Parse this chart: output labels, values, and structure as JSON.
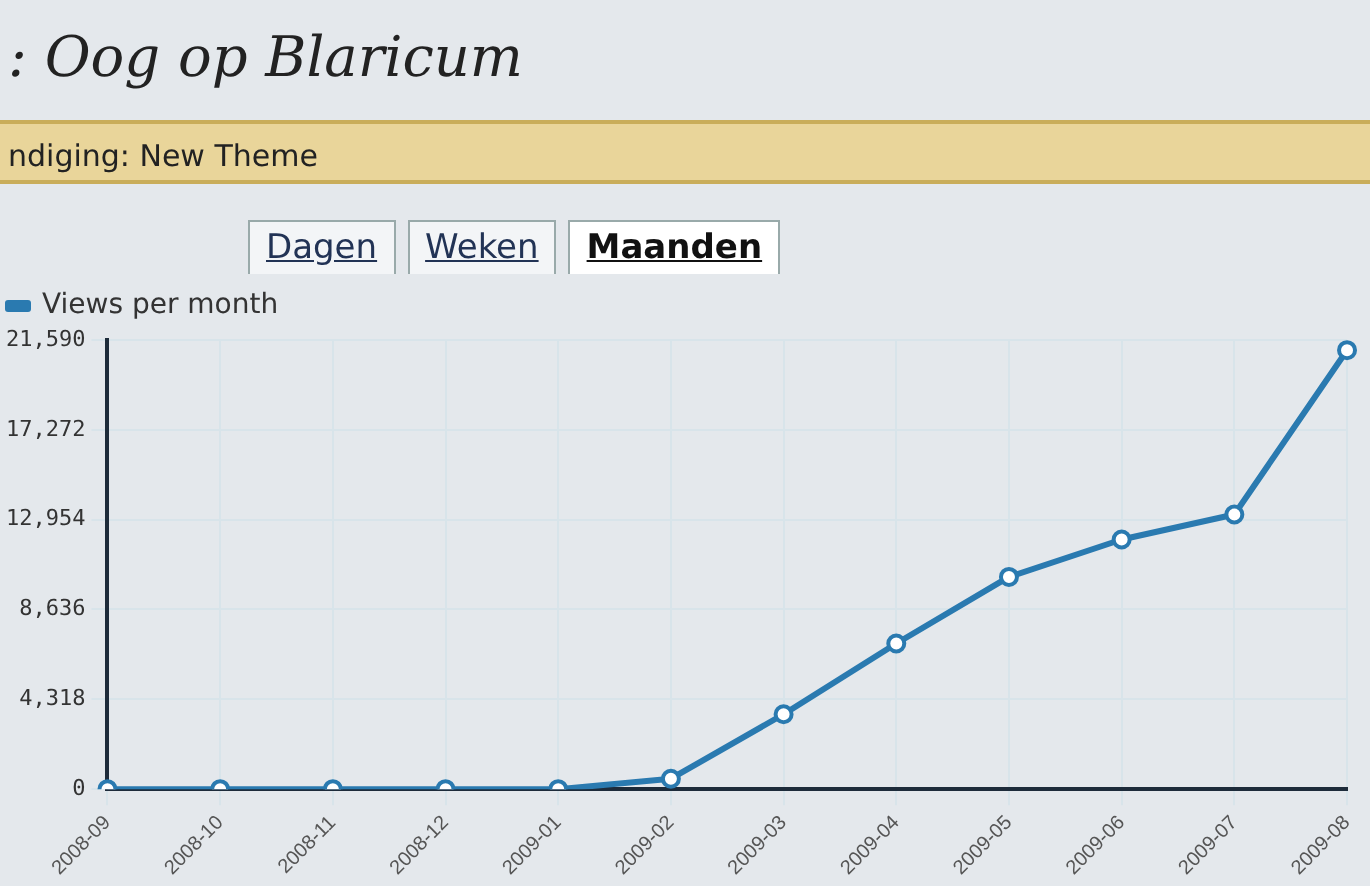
{
  "chart_data": {
    "type": "line",
    "title": ": Oog op Blaricum",
    "subtitle": "ndiging: New Theme",
    "annotations": [
      "Dagen",
      "Weken",
      "Maanden"
    ],
    "categories": [
      "2008-09",
      "2008-10",
      "2008-11",
      "2008-12",
      "2009-01",
      "2009-02",
      "2009-03",
      "2009-04",
      "2009-05",
      "2009-06",
      "2009-07",
      "2009-08"
    ],
    "series": [
      {
        "name": "Views per month",
        "color": "#2a7ab0",
        "values": [
          0,
          0,
          0,
          0,
          0,
          500,
          3600,
          7000,
          10200,
          12000,
          13200,
          21100
        ]
      }
    ],
    "ylim": [
      0,
      21590
    ],
    "yticks": [
      0,
      {
        "value": 4318,
        "label": "4,318"
      },
      {
        "value": 8636,
        "label": "8,636"
      },
      {
        "value": 12954,
        "label": "12,954"
      },
      {
        "value": 17272,
        "label": "17,272"
      },
      {
        "value": 21590,
        "label": "21,590"
      }
    ],
    "grid": true,
    "legend": "top left",
    "marker": "circle",
    "line_style": "solid"
  }
}
